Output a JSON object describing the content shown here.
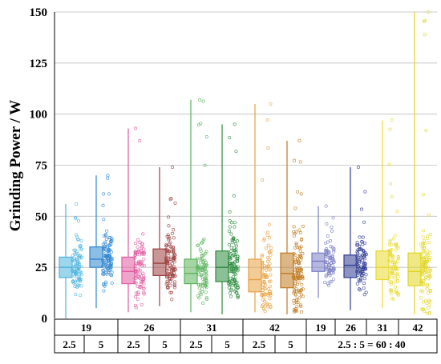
{
  "chart_data": {
    "type": "box",
    "ylabel": "Grinding Power / W",
    "ylim": [
      0,
      150
    ],
    "yticks": [
      0,
      25,
      50,
      75,
      100,
      125,
      150
    ],
    "grid": true,
    "category_rows": {
      "top": [
        "19",
        "26",
        "31",
        "42",
        "19",
        "26",
        "31",
        "42"
      ],
      "bottom": [
        "2.5",
        "5",
        "2.5",
        "5",
        "2.5",
        "5",
        "2.5",
        "5",
        "2.5 : 5 = 60 : 40"
      ]
    },
    "series": [
      {
        "top": "19",
        "bottom": "2.5",
        "color": "#4BB4DE",
        "min": 0,
        "q1": 20,
        "median": 25,
        "q3": 30,
        "max": 56,
        "n": 90
      },
      {
        "top": "19",
        "bottom": "5",
        "color": "#2E86D0",
        "min": 5,
        "q1": 25,
        "median": 29,
        "q3": 35,
        "max": 70,
        "n": 110
      },
      {
        "top": "26",
        "bottom": "2.5",
        "color": "#E15AA0",
        "min": 3,
        "q1": 17,
        "median": 23,
        "q3": 30,
        "max": 93,
        "n": 90
      },
      {
        "top": "26",
        "bottom": "5",
        "color": "#9C3E3E",
        "min": 6,
        "q1": 21,
        "median": 27,
        "q3": 34,
        "max": 74,
        "n": 110
      },
      {
        "top": "31",
        "bottom": "2.5",
        "color": "#5BB35B",
        "min": 3,
        "q1": 17,
        "median": 22,
        "q3": 29,
        "max": 107,
        "n": 90
      },
      {
        "top": "31",
        "bottom": "5",
        "color": "#2C8C3E",
        "min": 2,
        "q1": 18,
        "median": 25,
        "q3": 33,
        "max": 95,
        "n": 120
      },
      {
        "top": "42",
        "bottom": "2.5",
        "color": "#E8A040",
        "min": 3,
        "q1": 13,
        "median": 19,
        "q3": 29,
        "max": 105,
        "n": 90
      },
      {
        "top": "42",
        "bottom": "5",
        "color": "#C07A20",
        "min": 2,
        "q1": 15,
        "median": 22,
        "q3": 32,
        "max": 87,
        "n": 120
      },
      {
        "top": "19",
        "bottom": "2.5 : 5 = 60 : 40",
        "color": "#7A7EC4",
        "min": 10,
        "q1": 23,
        "median": 28,
        "q3": 32,
        "max": 55,
        "n": 80
      },
      {
        "top": "26",
        "bottom": "2.5 : 5 = 60 : 40",
        "color": "#2F3C93",
        "min": 4,
        "q1": 20,
        "median": 26,
        "q3": 31,
        "max": 74,
        "n": 90
      },
      {
        "top": "31",
        "bottom": "2.5 : 5 = 60 : 40",
        "color": "#E8D930",
        "min": 5,
        "q1": 19,
        "median": 25,
        "q3": 33,
        "max": 97,
        "n": 90
      },
      {
        "top": "42",
        "bottom": "2.5 : 5 = 60 : 40",
        "color": "#E0D620",
        "min": 2,
        "q1": 16,
        "median": 23,
        "q3": 32,
        "max": 150,
        "n": 110
      }
    ]
  }
}
